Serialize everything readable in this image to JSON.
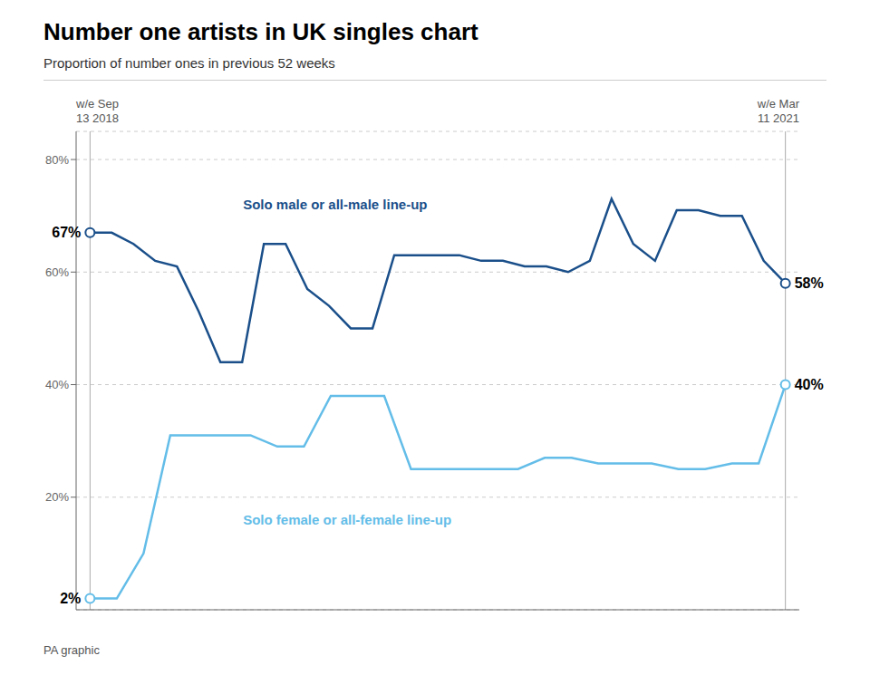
{
  "chart_data": {
    "type": "line",
    "title": "Number one artists in UK singles chart",
    "subtitle": "Proportion of number ones in previous 52 weeks",
    "footer": "PA graphic",
    "period_labels": [
      "w/e Sep\n13 2018",
      "w/e Mar\n11 2021"
    ],
    "series": [
      {
        "name": "Solo male or all-male line-up",
        "color": "#1a4f8a",
        "x": [
          0,
          0.03125,
          0.0625,
          0.09375,
          0.125,
          0.15625,
          0.1875,
          0.21875,
          0.25,
          0.28125,
          0.3125,
          0.34375,
          0.375,
          0.40625,
          0.4375,
          0.46875,
          0.5,
          0.53125,
          0.5625,
          0.59375,
          0.625,
          0.65625,
          0.6875,
          0.71875,
          0.75,
          0.78125,
          0.8125,
          0.84375,
          0.875,
          0.90625,
          0.9375,
          0.96875,
          1
        ],
        "values": [
          67,
          67,
          65,
          62,
          61,
          53,
          44,
          44,
          65,
          65,
          57,
          54,
          50,
          50,
          63,
          63,
          63,
          63,
          62,
          62,
          61,
          61,
          60,
          62,
          73,
          65,
          62,
          71,
          71,
          70,
          70,
          62,
          58
        ]
      },
      {
        "name": "Solo female or all-female line-up",
        "color": "#63bde8",
        "x": [
          0,
          0.038461538461538464,
          0.07692307692307693,
          0.11538461538461539,
          0.15384615384615385,
          0.19230769230769232,
          0.23076923076923078,
          0.2692307692307692,
          0.3076923076923077,
          0.34615384615384615,
          0.38461538461538464,
          0.4230769230769231,
          0.46153846153846156,
          0.5,
          0.5384615384615384,
          0.5769230769230769,
          0.6153846153846154,
          0.6538461538461539,
          0.6923076923076923,
          0.7307692307692307,
          0.7692307692307693,
          0.8076923076923077,
          0.8461538461538461,
          0.8846153846153846,
          0.9230769230769231,
          0.9615384615384616,
          1
        ],
        "values": [
          2,
          2,
          10,
          31,
          31,
          31,
          31,
          29,
          29,
          38,
          38,
          38,
          25,
          25,
          25,
          25,
          25,
          27,
          27,
          26,
          26,
          26,
          25,
          25,
          26,
          26,
          40
        ]
      }
    ],
    "xlim": [
      -0.02,
      1.02
    ],
    "ylim": [
      0,
      85
    ],
    "yticks": [
      {
        "value": 20,
        "label": "20%"
      },
      {
        "value": 40,
        "label": "40%"
      },
      {
        "value": 60,
        "label": "60%"
      },
      {
        "value": 80,
        "label": "80%"
      }
    ],
    "grid": true,
    "tick_labels": "y",
    "annotations": [
      {
        "text": "67%",
        "x": 0,
        "y": 67
      },
      {
        "text": "2%",
        "x": 0,
        "y": 2
      },
      {
        "text": "58%",
        "x": 1,
        "y": 58
      },
      {
        "text": "40%",
        "x": 1,
        "y": 40
      },
      {
        "text": "Solo male or all-male line-up",
        "x": 0.22,
        "y": 72
      },
      {
        "text": "Solo female or all-female line-up",
        "x": 0.22,
        "y": 16
      }
    ]
  }
}
